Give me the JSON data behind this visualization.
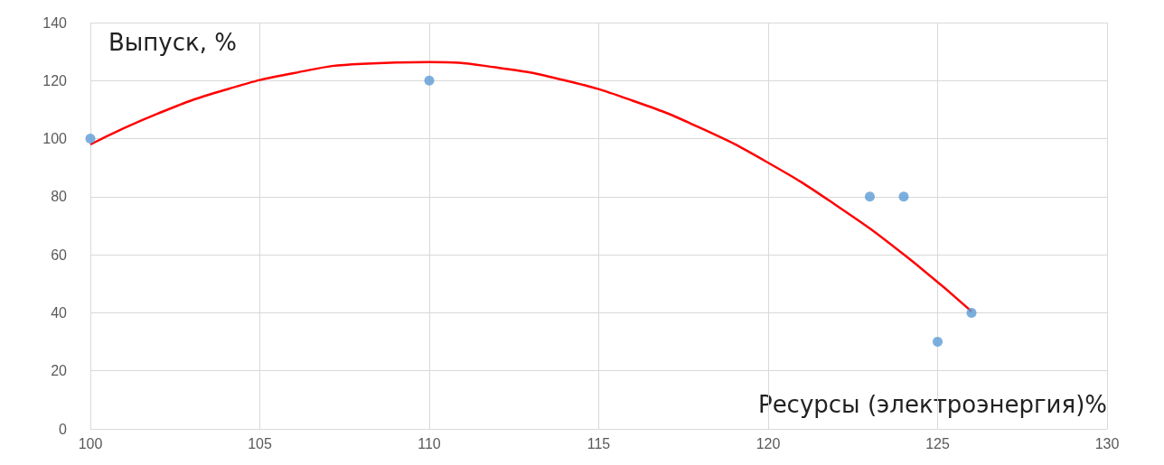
{
  "chart_data": {
    "type": "scatter",
    "xlabel": "Ресурсы (электроэнергия)%",
    "ylabel": "Выпуск, %",
    "xlim": [
      100,
      130
    ],
    "xticks": [
      100,
      105,
      110,
      115,
      120,
      125,
      130
    ],
    "ylim": [
      0,
      140
    ],
    "yticks": [
      0,
      20,
      40,
      60,
      80,
      100,
      120,
      140
    ],
    "grid": true,
    "marker": "circle",
    "series": [
      {
        "color": "#5b9bd5",
        "x": [
          100,
          110,
          123,
          124,
          125,
          126
        ],
        "values": [
          100,
          120,
          80,
          80,
          30,
          40
        ]
      },
      {
        "type": "line",
        "color": "#ff0000",
        "marker": "none",
        "x": [
          100,
          102,
          104,
          106,
          108,
          110,
          112,
          114,
          116,
          118,
          120,
          122,
          124,
          126
        ],
        "values": [
          98,
          108.7,
          116.9,
          122.6,
          125.8,
          126.4,
          124.5,
          120.1,
          113.1,
          103.7,
          91.7,
          77.1,
          60.1,
          40.5
        ]
      }
    ]
  }
}
